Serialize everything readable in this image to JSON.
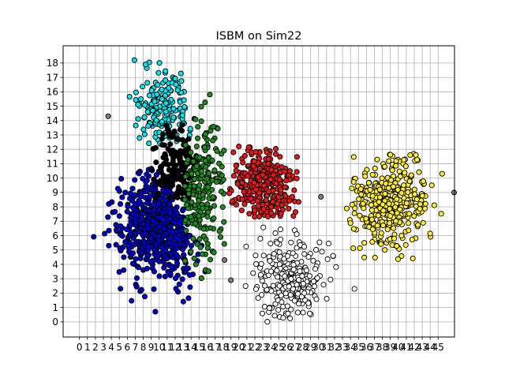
{
  "chart_data": {
    "type": "scatter",
    "title": "ISBM on Sim22",
    "xlabel": "",
    "ylabel": "",
    "xlim": [
      -2.05,
      47.05
    ],
    "ylim": [
      -1.05,
      19.2
    ],
    "x_ticks": [
      0,
      1,
      2,
      3,
      4,
      5,
      6,
      7,
      8,
      9,
      10,
      11,
      12,
      13,
      14,
      15,
      16,
      17,
      18,
      19,
      20,
      21,
      22,
      23,
      24,
      25,
      26,
      27,
      28,
      29,
      30,
      31,
      32,
      33,
      34,
      35,
      36,
      37,
      38,
      39,
      40,
      41,
      42,
      43,
      44,
      45
    ],
    "y_ticks": [
      0,
      1,
      2,
      3,
      4,
      5,
      6,
      7,
      8,
      9,
      10,
      11,
      12,
      13,
      14,
      15,
      16,
      17,
      18
    ],
    "grid": true,
    "marker_edge_color": "#000000",
    "clusters": [
      {
        "color": "#0000cc",
        "center": [
          10,
          6.8
        ],
        "spread": [
          4.6,
          3.8
        ],
        "count": 650,
        "region": "blue"
      },
      {
        "color": "#00e5ee",
        "center": [
          10.5,
          14.8
        ],
        "spread": [
          3.2,
          2.6
        ],
        "count": 170,
        "region": "cyan"
      },
      {
        "color": "#000000",
        "center": [
          12,
          10.8
        ],
        "spread": [
          3.0,
          3.0
        ],
        "count": 160,
        "region": "black"
      },
      {
        "color": "#1e8c1e",
        "center": [
          15.5,
          9.5
        ],
        "spread": [
          3.0,
          5.0
        ],
        "count": 220,
        "region": "green"
      },
      {
        "color": "#e41a1c",
        "center": [
          23.2,
          9.3
        ],
        "spread": [
          4.4,
          2.6
        ],
        "count": 300,
        "region": "red"
      },
      {
        "color": "#ffffff",
        "center": [
          26.5,
          3.0
        ],
        "spread": [
          4.6,
          3.0
        ],
        "count": 250,
        "region": "white"
      },
      {
        "color": "#ffee33",
        "center": [
          39,
          8.4
        ],
        "spread": [
          5.0,
          3.4
        ],
        "count": 380,
        "region": "yellow"
      }
    ],
    "outliers": [
      {
        "x": 3.6,
        "y": 14.3,
        "color": "#808080"
      },
      {
        "x": 18.2,
        "y": 4.3,
        "color": "#808080"
      },
      {
        "x": 19.0,
        "y": 2.9,
        "color": "#808080"
      },
      {
        "x": 30.3,
        "y": 8.7,
        "color": "#808080"
      },
      {
        "x": 47.0,
        "y": 9.0,
        "color": "#808080"
      },
      {
        "x": 44.2,
        "y": 9.5,
        "color": "#ffee33"
      },
      {
        "x": 45.5,
        "y": 10.3,
        "color": "#ffee33"
      },
      {
        "x": 6.9,
        "y": 18.2,
        "color": "#00e5ee"
      },
      {
        "x": 8.3,
        "y": 17.9,
        "color": "#00e5ee"
      },
      {
        "x": 34.5,
        "y": 2.3,
        "color": "#ffffff"
      }
    ]
  }
}
